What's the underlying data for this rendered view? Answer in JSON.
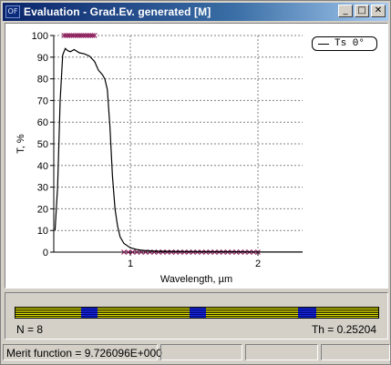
{
  "window": {
    "icon_text": "OF",
    "title": "Evaluation - Grad.Ev. generated [M]",
    "buttons": {
      "minimize": "_",
      "maximize": "□",
      "close": "✕"
    }
  },
  "chart_data": {
    "type": "line",
    "xlabel": "Wavelength, µm",
    "ylabel": "T, %",
    "xlim": [
      0.4,
      2.35
    ],
    "ylim": [
      0,
      100
    ],
    "x_ticks": [
      1,
      2
    ],
    "y_ticks": [
      0,
      10,
      20,
      30,
      40,
      50,
      60,
      70,
      80,
      90,
      100
    ],
    "grid": true,
    "legend_position": "top-right",
    "series": [
      {
        "name": "Ts 0°",
        "color": "#000000",
        "x": [
          0.41,
          0.43,
          0.45,
          0.47,
          0.49,
          0.51,
          0.53,
          0.56,
          0.6,
          0.64,
          0.68,
          0.72,
          0.75,
          0.78,
          0.8,
          0.82,
          0.84,
          0.86,
          0.88,
          0.9,
          0.92,
          0.95,
          1.0,
          1.05,
          1.1,
          1.2,
          1.4,
          1.6,
          1.8,
          2.0,
          2.2,
          2.35
        ],
        "values": [
          10,
          30,
          70,
          91,
          94,
          93,
          92.5,
          93.5,
          92,
          91.5,
          90.5,
          88,
          84,
          82,
          80,
          75,
          58,
          35,
          20,
          12,
          7,
          4,
          2,
          1.2,
          0.8,
          0.5,
          0.3,
          0.2,
          0.2,
          0.1,
          0.1,
          0.1
        ]
      }
    ],
    "targets": {
      "marker": "x",
      "color": "#8b1a5a",
      "high": {
        "x_from": 0.48,
        "x_to": 0.72,
        "count": 17,
        "value": 100
      },
      "low": {
        "x_from": 0.95,
        "x_to": 2.0,
        "count": 32,
        "value": 0
      }
    }
  },
  "design": {
    "n_label": "N = 8",
    "th_label": "Th = 0.25204",
    "layers": [
      {
        "material": "high",
        "start_fraction": 0.18,
        "end_fraction": 0.225
      },
      {
        "material": "high",
        "start_fraction": 0.48,
        "end_fraction": 0.525
      },
      {
        "material": "high",
        "start_fraction": 0.78,
        "end_fraction": 0.83
      }
    ]
  },
  "status": {
    "merit_function": "Merit function =  9.726096E+000"
  }
}
